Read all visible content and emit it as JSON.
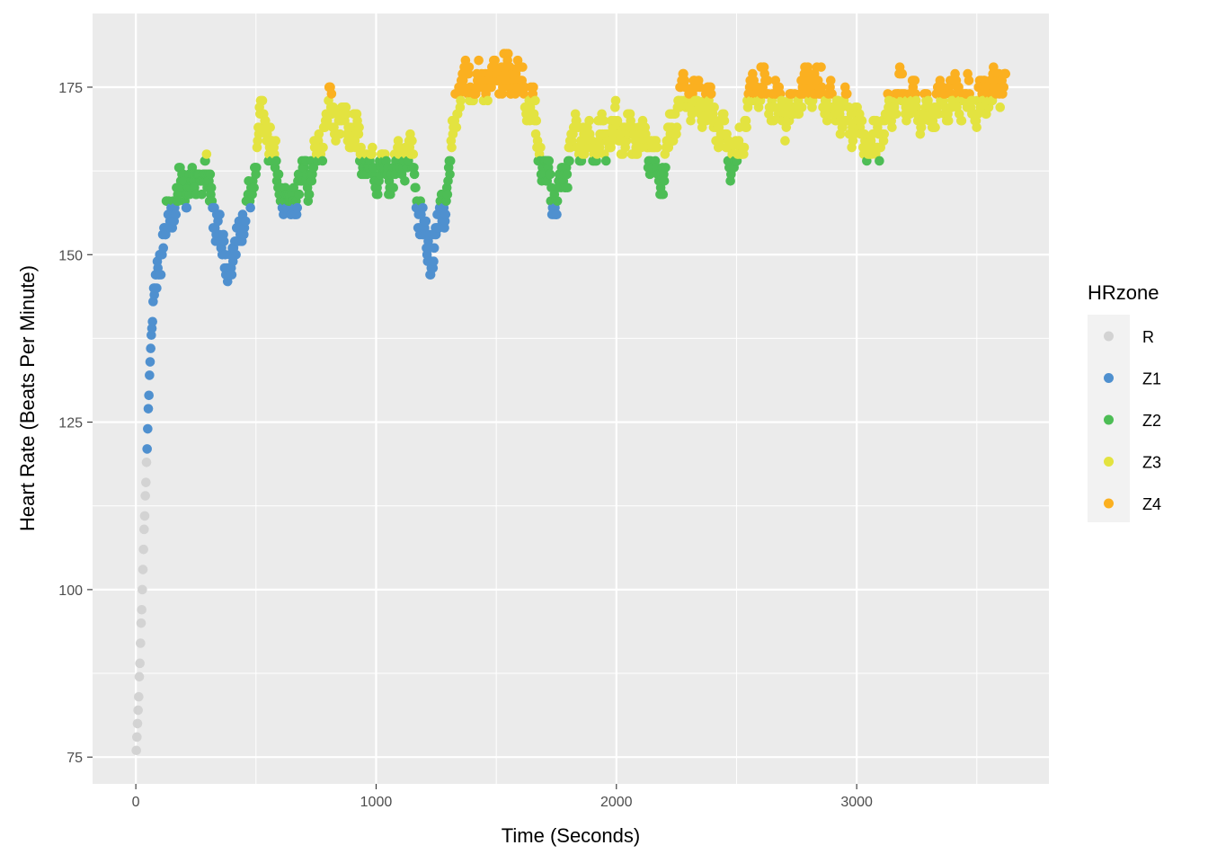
{
  "chart_data": {
    "type": "scatter",
    "title": "",
    "xlabel": "Time (Seconds)",
    "ylabel": "Heart Rate (Beats Per Minute)",
    "xlim": [
      -180,
      3800
    ],
    "ylim": [
      71,
      186
    ],
    "x_ticks": [
      0,
      1000,
      2000,
      3000
    ],
    "x_tick_labels": [
      "0",
      "1000",
      "2000",
      "3000"
    ],
    "y_ticks": [
      75,
      100,
      125,
      150,
      175
    ],
    "y_tick_labels": [
      "75",
      "100",
      "125",
      "150",
      "175"
    ],
    "grid": true,
    "legend": {
      "title": "HRzone",
      "placement": "right",
      "entries": [
        "R",
        "Z1",
        "Z2",
        "Z3",
        "Z4"
      ]
    },
    "zone_colors": {
      "R": "#d3d3d3",
      "Z1": "#4f90cf",
      "Z2": "#4dbd55",
      "Z3": "#e3e340",
      "Z4": "#fbb020"
    },
    "zone_lower_bounds_bpm": {
      "R": 0,
      "Z1": 121,
      "Z2": 158,
      "Z3": 165,
      "Z4": 174
    },
    "heart_rate_curve": {
      "x": [
        2,
        10,
        18,
        25,
        32,
        40,
        48,
        55,
        65,
        80,
        110,
        150,
        200,
        250,
        280,
        320,
        360,
        400,
        440,
        480,
        520,
        560,
        600,
        640,
        680,
        720,
        760,
        800,
        840,
        880,
        920,
        960,
        1000,
        1060,
        1100,
        1150,
        1200,
        1230,
        1260,
        1300,
        1330,
        1350,
        1400,
        1450,
        1500,
        1550,
        1600,
        1650,
        1700,
        1750,
        1780,
        1820,
        1880,
        1950,
        2000,
        2050,
        2100,
        2150,
        2180,
        2200,
        2250,
        2300,
        2350,
        2400,
        2450,
        2500,
        2550,
        2600,
        2650,
        2700,
        2750,
        2800,
        2850,
        2900,
        2950,
        3000,
        3050,
        3100,
        3150,
        3200,
        3250,
        3300,
        3350,
        3400,
        3450,
        3500,
        3550,
        3600,
        3620
      ],
      "y": [
        76,
        82,
        90,
        98,
        106,
        114,
        122,
        130,
        138,
        146,
        152,
        157,
        161,
        160,
        163,
        158,
        151,
        149,
        155,
        158,
        170,
        167,
        160,
        157,
        161,
        162,
        165,
        172,
        170,
        171,
        167,
        164,
        163,
        162,
        165,
        164,
        152,
        151,
        155,
        160,
        172,
        175,
        176,
        176,
        176,
        177,
        176,
        172,
        162,
        158,
        161,
        168,
        167,
        167,
        169,
        168,
        167,
        165,
        162,
        163,
        172,
        174,
        173,
        171,
        167,
        164,
        172,
        176,
        173,
        171,
        172,
        176,
        175,
        172,
        171,
        170,
        166,
        168,
        173,
        174,
        172,
        171,
        173,
        174,
        173,
        173,
        174,
        175,
        177
      ]
    }
  }
}
